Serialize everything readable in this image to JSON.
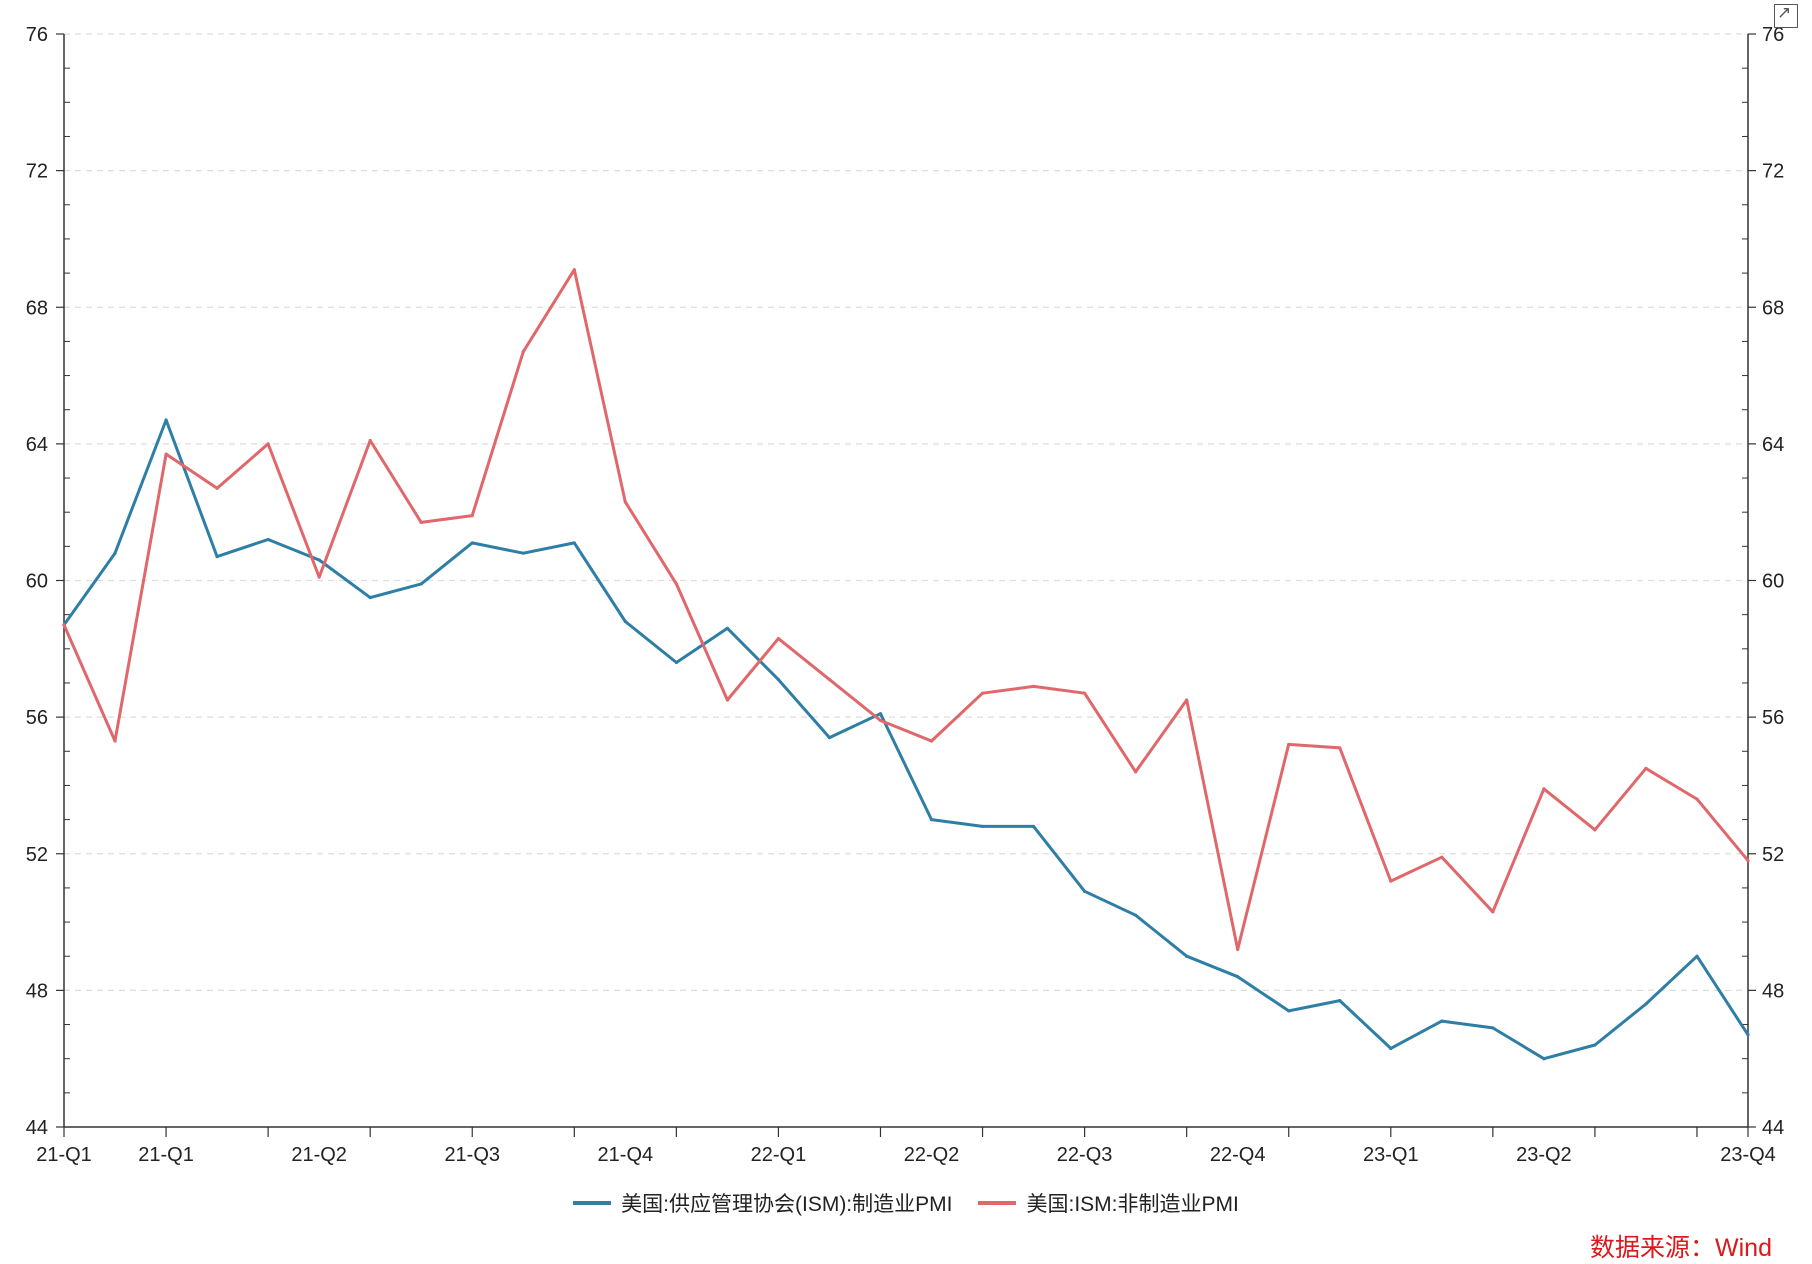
{
  "chart_data": {
    "type": "line",
    "title": "",
    "ylim": [
      44,
      76
    ],
    "yticks": [
      "44",
      "48",
      "52",
      "56",
      "60",
      "64",
      "68",
      "72",
      "76"
    ],
    "x_tick_labels": [
      "21-Q1",
      "21-Q1",
      "21-Q2",
      "21-Q3",
      "21-Q4",
      "22-Q1",
      "22-Q2",
      "22-Q3",
      "22-Q4",
      "23-Q1",
      "23-Q2",
      "23-Q4"
    ],
    "grid": true,
    "legend_position": "bottom",
    "series": [
      {
        "name": "美国:供应管理协会(ISM):制造业PMI",
        "color": "#2e7ea6",
        "values": [
          58.7,
          60.8,
          64.7,
          60.7,
          61.2,
          60.6,
          59.5,
          59.9,
          61.1,
          60.8,
          61.1,
          58.8,
          57.6,
          58.6,
          57.1,
          55.4,
          56.1,
          53.0,
          52.8,
          52.8,
          50.9,
          50.2,
          49.0,
          48.4,
          47.4,
          47.7,
          46.3,
          47.1,
          46.9,
          46.0,
          46.4,
          47.6,
          49.0,
          46.7
        ]
      },
      {
        "name": "美国:ISM:非制造业PMI",
        "color": "#e0676a",
        "values": [
          58.7,
          55.3,
          63.7,
          62.7,
          64.0,
          60.1,
          64.1,
          61.7,
          61.9,
          66.7,
          69.1,
          62.3,
          59.9,
          56.5,
          58.3,
          57.1,
          55.9,
          55.3,
          56.7,
          56.9,
          56.7,
          54.4,
          56.5,
          49.2,
          55.2,
          55.1,
          51.2,
          51.9,
          50.3,
          53.9,
          52.7,
          54.5,
          53.6,
          51.8
        ]
      }
    ]
  },
  "source_text": "数据来源：Wind"
}
